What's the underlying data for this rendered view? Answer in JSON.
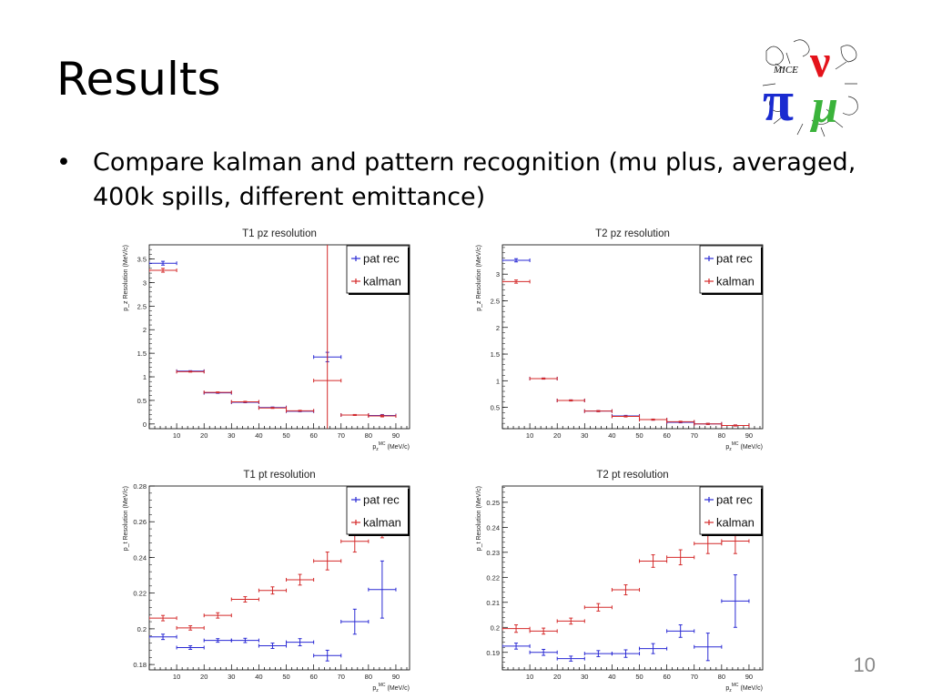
{
  "slide": {
    "title": "Results",
    "bullet": "Compare kalman and pattern recognition (mu plus, averaged, 400k spills, different emittance)",
    "page_number": "10"
  },
  "logo": {
    "text": "MICE",
    "colors": {
      "pi": "#1a2bd0",
      "nu": "#e4131b",
      "mu": "#3bb33b"
    }
  },
  "series_colors": {
    "pat rec": "#2a2ad4",
    "kalman": "#d42a2a"
  },
  "chart_data": [
    {
      "type": "scatter",
      "title": "T1 pz resolution",
      "xlabel_pre": "p",
      "xlabel_sub": "z",
      "xlabel_sup": "MC",
      "xlabel_post": " (MeV/c)",
      "ylabel": "p_z Resolution (MeV/c)",
      "xlim": [
        0,
        95
      ],
      "ylim": [
        -0.1,
        3.8
      ],
      "xticks": [
        10,
        20,
        30,
        40,
        50,
        60,
        70,
        80,
        90
      ],
      "yticks": [
        0,
        0.5,
        1,
        1.5,
        2,
        2.5,
        3,
        3.5
      ],
      "legend": "top-right",
      "series": [
        {
          "name": "pat rec",
          "color": "#2a2ad4",
          "x": [
            5,
            15,
            25,
            35,
            45,
            55,
            65,
            75,
            85
          ],
          "y": [
            3.41,
            1.12,
            0.66,
            0.46,
            0.35,
            0.27,
            1.42,
            0.19,
            0.18
          ],
          "yerr": [
            0.04,
            0.01,
            0.01,
            0.01,
            0.01,
            0.01,
            0.1,
            0.01,
            0.02
          ]
        },
        {
          "name": "kalman",
          "color": "#d42a2a",
          "x": [
            5,
            15,
            25,
            35,
            45,
            55,
            65,
            75,
            85
          ],
          "y": [
            3.26,
            1.11,
            0.67,
            0.47,
            0.34,
            0.28,
            0.92,
            0.19,
            0.17
          ],
          "yerr": [
            0.04,
            0.01,
            0.01,
            0.01,
            0.01,
            0.01,
            3.2,
            0.01,
            0.02
          ]
        }
      ]
    },
    {
      "type": "scatter",
      "title": "T2 pz resolution",
      "xlabel_pre": "p",
      "xlabel_sub": "z",
      "xlabel_sup": "MC",
      "xlabel_post": " (MeV/c)",
      "ylabel": "p_z Resolution (MeV/c)",
      "xlim": [
        0,
        95
      ],
      "ylim": [
        0.1,
        3.55
      ],
      "xticks": [
        10,
        20,
        30,
        40,
        50,
        60,
        70,
        80,
        90
      ],
      "yticks": [
        0.5,
        1,
        1.5,
        2,
        2.5,
        3
      ],
      "legend": "top-right",
      "series": [
        {
          "name": "pat rec",
          "color": "#2a2ad4",
          "x": [
            5,
            15,
            25,
            35,
            45,
            55,
            65,
            75,
            85
          ],
          "y": [
            3.26,
            1.04,
            0.63,
            0.43,
            0.34,
            0.27,
            0.22,
            0.19,
            0.16
          ],
          "yerr": [
            0.03,
            0.01,
            0.01,
            0.01,
            0.01,
            0.01,
            0.01,
            0.01,
            0.01
          ]
        },
        {
          "name": "kalman",
          "color": "#d42a2a",
          "x": [
            5,
            15,
            25,
            35,
            45,
            55,
            65,
            75,
            85
          ],
          "y": [
            2.86,
            1.04,
            0.63,
            0.43,
            0.33,
            0.27,
            0.23,
            0.19,
            0.16
          ],
          "yerr": [
            0.03,
            0.01,
            0.01,
            0.01,
            0.01,
            0.01,
            0.01,
            0.01,
            0.01
          ]
        }
      ]
    },
    {
      "type": "scatter",
      "title": "T1 pt resolution",
      "xlabel_pre": "p",
      "xlabel_sub": "z",
      "xlabel_sup": "MC",
      "xlabel_post": " (MeV/c)",
      "ylabel": "p_t Resolution (MeV/c)",
      "xlim": [
        0,
        95
      ],
      "ylim": [
        0.177,
        0.28
      ],
      "xticks": [
        10,
        20,
        30,
        40,
        50,
        60,
        70,
        80,
        90
      ],
      "yticks": [
        0.18,
        0.2,
        0.22,
        0.24,
        0.26,
        0.28
      ],
      "legend": "top-right",
      "series": [
        {
          "name": "pat rec",
          "color": "#2a2ad4",
          "x": [
            5,
            15,
            25,
            35,
            45,
            55,
            65,
            75,
            85
          ],
          "y": [
            0.1955,
            0.1895,
            0.1935,
            0.1935,
            0.1905,
            0.1925,
            0.185,
            0.204,
            0.222
          ],
          "yerr": [
            0.0015,
            0.001,
            0.001,
            0.0012,
            0.0015,
            0.002,
            0.003,
            0.007,
            0.016
          ]
        },
        {
          "name": "kalman",
          "color": "#d42a2a",
          "x": [
            5,
            15,
            25,
            35,
            45,
            55,
            65,
            75,
            85
          ],
          "y": [
            0.206,
            0.2005,
            0.2075,
            0.2165,
            0.2215,
            0.2275,
            0.238,
            0.249,
            0.257
          ],
          "yerr": [
            0.0015,
            0.0012,
            0.0015,
            0.0015,
            0.002,
            0.003,
            0.005,
            0.006,
            0.006
          ]
        }
      ]
    },
    {
      "type": "scatter",
      "title": "T2 pt resolution",
      "xlabel_pre": "p",
      "xlabel_sub": "z",
      "xlabel_sup": "MC",
      "xlabel_post": " (MeV/c)",
      "ylabel": "p_t Resolution (MeV/c)",
      "xlim": [
        0,
        95
      ],
      "ylim": [
        0.183,
        0.2565
      ],
      "xticks": [
        10,
        20,
        30,
        40,
        50,
        60,
        70,
        80,
        90
      ],
      "yticks": [
        0.19,
        0.2,
        0.21,
        0.22,
        0.23,
        0.24,
        0.25
      ],
      "legend": "top-right",
      "series": [
        {
          "name": "pat rec",
          "color": "#2a2ad4",
          "x": [
            5,
            15,
            25,
            35,
            45,
            55,
            65,
            75,
            85
          ],
          "y": [
            0.1925,
            0.19,
            0.1875,
            0.1895,
            0.1895,
            0.1915,
            0.1985,
            0.1922,
            0.2105
          ],
          "yerr": [
            0.0012,
            0.0012,
            0.001,
            0.0012,
            0.0015,
            0.002,
            0.0025,
            0.0055,
            0.0105
          ]
        },
        {
          "name": "kalman",
          "color": "#d42a2a",
          "x": [
            5,
            15,
            25,
            35,
            45,
            55,
            65,
            75,
            85
          ],
          "y": [
            0.1995,
            0.1985,
            0.2025,
            0.208,
            0.215,
            0.2265,
            0.228,
            0.2335,
            0.2345
          ],
          "yerr": [
            0.0015,
            0.0012,
            0.0012,
            0.0015,
            0.002,
            0.0025,
            0.003,
            0.004,
            0.005
          ]
        }
      ]
    }
  ]
}
